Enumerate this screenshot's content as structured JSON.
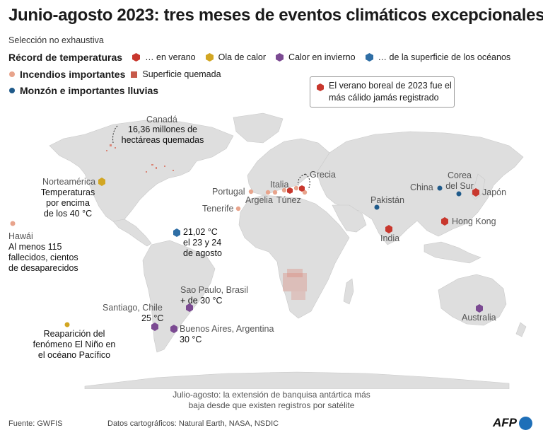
{
  "title": "Junio-agosto 2023: tres meses de eventos climáticos excepcionales",
  "subtitle": "Selección no exhaustiva",
  "colors": {
    "summer_record": "#c8372d",
    "heatwave": "#d2a622",
    "winter_heat": "#7b4a92",
    "ocean": "#2f6ea5",
    "fire": "#e8a48c",
    "burned_area": "#c75a4a",
    "monsoon": "#1f5a8a",
    "land": "#dedede",
    "ocean_bg": "#ffffff"
  },
  "legend": {
    "temp_records": {
      "heading": "Récord de temperaturas",
      "items": [
        {
          "icon": "red-hexagon-icon",
          "label": "… en verano"
        },
        {
          "icon": "yellow-hexagon-icon",
          "label": "Ola de calor"
        },
        {
          "icon": "purple-hexagon-icon",
          "label": "Calor en invierno"
        },
        {
          "icon": "blue-hexagon-icon",
          "label": "… de la superficie de los océanos"
        }
      ]
    },
    "fires": {
      "heading": "Incendios importantes",
      "items": [
        {
          "icon": "square-icon",
          "label": "Superficie quemada"
        }
      ]
    },
    "monsoon": {
      "heading": "Monzón e importantes lluvias"
    }
  },
  "callout": "El verano boreal de 2023 fue el más cálido jamás registrado",
  "map_labels": {
    "canada": "Canadá",
    "canada_note_1": "16,36 millones de",
    "canada_note_2": "hectáreas quemadas",
    "north_america": "Norteamérica",
    "na_note_1": "Temperaturas",
    "na_note_2": "por encima",
    "na_note_3": "de los 40 °C",
    "hawaii": "Hawái",
    "hawaii_note_1": "Al menos 115",
    "hawaii_note_2": "fallecidos, cientos",
    "hawaii_note_3": "de desaparecidos",
    "ocean_temp_1": "21,02 °C",
    "ocean_temp_2": "el 23 y 24",
    "ocean_temp_3": "de agosto",
    "portugal": "Portugal",
    "italy": "Italia",
    "greece": "Grecia",
    "tenerife": "Tenerife",
    "algeria": "Argelia",
    "tunisia": "Túnez",
    "pakistan": "Pakistán",
    "china": "China",
    "south_korea_1": "Corea",
    "south_korea_2": "del Sur",
    "japan": "Japón",
    "hong_kong": "Hong Kong",
    "india": "India",
    "sao_paulo": "Sao Paulo, Brasil",
    "sao_paulo_note": "+ de 30 °C",
    "santiago": "Santiago, Chile",
    "santiago_note": "25 °C",
    "buenos_aires": "Buenos Aires, Argentina",
    "buenos_aires_note": "30 °C",
    "el_nino_1": "Reaparición del",
    "el_nino_2": "fenómeno El Niño en",
    "el_nino_3": "el océano Pacífico",
    "australia": "Australia"
  },
  "antarctic_1": "Julio-agosto: la extensión de banquisa antártica más",
  "antarctic_2": "baja desde que existen registros por satélite",
  "source": "Fuente: GWFIS",
  "credits": "Datos cartográficos: Natural Earth, NASA, NSDIC",
  "logo": "AFP"
}
